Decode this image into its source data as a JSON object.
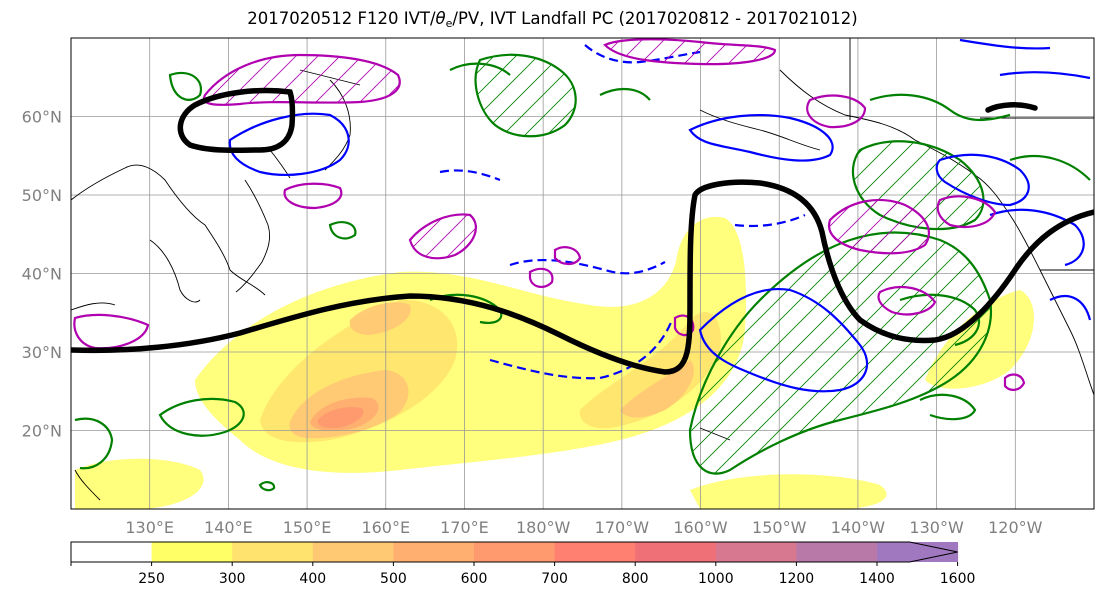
{
  "chart_data": {
    "type": "map",
    "title": {
      "prefix": "2017020512 F120 IVT/",
      "theta": "θ",
      "theta_sub": "e",
      "suffix": "/PV, IVT Landfall PC (2017020812 - 2017021012)"
    },
    "map": {
      "lon_range": [
        120,
        250
      ],
      "lat_range": [
        10,
        70
      ],
      "lat_ticks": [
        {
          "value": 60,
          "label": "60°N"
        },
        {
          "value": 50,
          "label": "50°N"
        },
        {
          "value": 40,
          "label": "40°N"
        },
        {
          "value": 30,
          "label": "30°N"
        },
        {
          "value": 20,
          "label": "20°N"
        }
      ],
      "lon_ticks": [
        {
          "value": 130,
          "label": "130°E"
        },
        {
          "value": 140,
          "label": "140°E"
        },
        {
          "value": 150,
          "label": "150°E"
        },
        {
          "value": 160,
          "label": "160°E"
        },
        {
          "value": 170,
          "label": "170°E"
        },
        {
          "value": 180,
          "label": "180°W"
        },
        {
          "value": 190,
          "label": "170°W"
        },
        {
          "value": 200,
          "label": "160°W"
        },
        {
          "value": 210,
          "label": "150°W"
        },
        {
          "value": 220,
          "label": "140°W"
        },
        {
          "value": 230,
          "label": "130°W"
        },
        {
          "value": 240,
          "label": "120°W"
        }
      ],
      "grid": true
    },
    "colorbar": {
      "levels": [
        "250",
        "300",
        "400",
        "500",
        "600",
        "700",
        "800",
        "1000",
        "1200",
        "1400",
        "1600"
      ],
      "colors": [
        "#ffff66",
        "#ffe36e",
        "#ffc873",
        "#ffb070",
        "#ff9a6e",
        "#ff8070",
        "#f07078",
        "#d87890",
        "#b878a8",
        "#a078c0"
      ],
      "extend": "max"
    },
    "ivt_features": [
      {
        "lon": 157,
        "lat": 21,
        "peak": 800
      },
      {
        "lon": 163,
        "lat": 34,
        "peak": 700
      },
      {
        "lon": 198,
        "lat": 29,
        "peak": 600
      },
      {
        "lon": 237,
        "lat": 31,
        "peak": 500
      }
    ],
    "contour_colors": {
      "highlight_line": "#000000",
      "theta_e": "#008000",
      "pv_positive": "#0000ff",
      "pv_negative": "#0000ff",
      "ivt_pc": "#b000b0"
    }
  }
}
